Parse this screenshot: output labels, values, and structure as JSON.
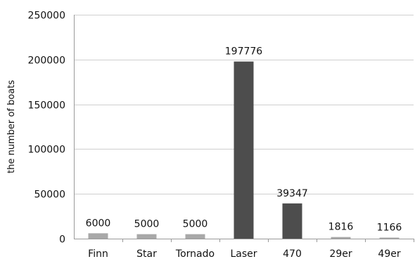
{
  "chart_data": {
    "type": "bar",
    "title": "",
    "xlabel": "",
    "ylabel": "the number of boats",
    "ylim": [
      0,
      250000
    ],
    "y_ticks": [
      0,
      50000,
      100000,
      150000,
      200000,
      250000
    ],
    "grid": true,
    "legend": "none",
    "categories": [
      "Finn",
      "Star",
      "Tornado",
      "Laser",
      "470",
      "29er",
      "49er"
    ],
    "values": [
      6000,
      5000,
      5000,
      197776,
      39347,
      1816,
      1166
    ],
    "bar_colors": [
      "#a8a8a8",
      "#a8a8a8",
      "#a8a8a8",
      "#4d4d4d",
      "#4d4d4d",
      "#a8a8a8",
      "#a8a8a8"
    ]
  }
}
